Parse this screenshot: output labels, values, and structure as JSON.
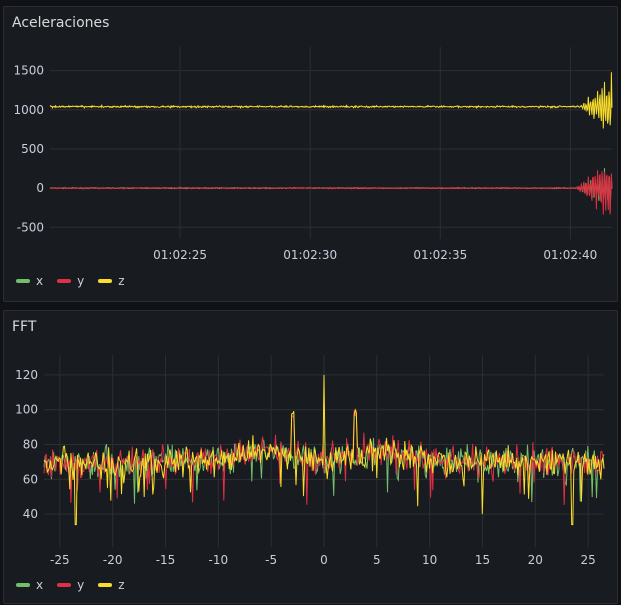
{
  "panels": [
    {
      "title": "Aceleraciones"
    },
    {
      "title": "FFT"
    }
  ],
  "legend": [
    {
      "label": "x",
      "color": "#73bf69"
    },
    {
      "label": "y",
      "color": "#e02f44"
    },
    {
      "label": "z",
      "color": "#fade2a"
    }
  ],
  "chart_data": [
    {
      "type": "line",
      "title": "Aceleraciones",
      "x_tick_labels": [
        "01:02:25",
        "01:02:30",
        "01:02:35",
        "01:02:40"
      ],
      "x_ticks_seconds": [
        25,
        30,
        35,
        40
      ],
      "xlim_seconds": [
        20,
        41.6
      ],
      "ylim": [
        -650,
        1700
      ],
      "y_ticks": [
        1500,
        1000,
        500,
        0,
        -500
      ],
      "grid": true,
      "legend_position": "bottom-left",
      "series": [
        {
          "name": "x",
          "color": "#73bf69",
          "baseline": 0,
          "noise": 4,
          "burst_start": 40.2,
          "burst_amplitude": 300
        },
        {
          "name": "y",
          "color": "#e02f44",
          "baseline": 0,
          "noise": 5,
          "burst_start": 40.2,
          "burst_amplitude": 400
        },
        {
          "name": "z",
          "color": "#fade2a",
          "baseline": 1040,
          "noise": 8,
          "burst_start": 40.4,
          "burst_amplitude": 450
        }
      ]
    },
    {
      "type": "line",
      "title": "FFT",
      "x_ticks": [
        -25,
        -20,
        -15,
        -10,
        -5,
        0,
        5,
        10,
        15,
        20,
        25
      ],
      "xlim": [
        -26.5,
        26.5
      ],
      "ylim": [
        28,
        128
      ],
      "y_ticks": [
        120,
        100,
        80,
        60,
        40
      ],
      "grid": true,
      "legend_position": "bottom-left",
      "features": {
        "mean": 70,
        "peak_at_zero": 120,
        "side_peaks": [
          {
            "x": -3,
            "y": 100
          },
          {
            "x": 3,
            "y": 100
          }
        ],
        "dips": [
          {
            "x": -23.5,
            "y": 34
          },
          {
            "x": 23.5,
            "y": 34
          },
          {
            "x": 15,
            "y": 40
          }
        ]
      },
      "series": [
        {
          "name": "x",
          "color": "#73bf69"
        },
        {
          "name": "y",
          "color": "#e02f44"
        },
        {
          "name": "z",
          "color": "#fade2a"
        }
      ]
    }
  ]
}
